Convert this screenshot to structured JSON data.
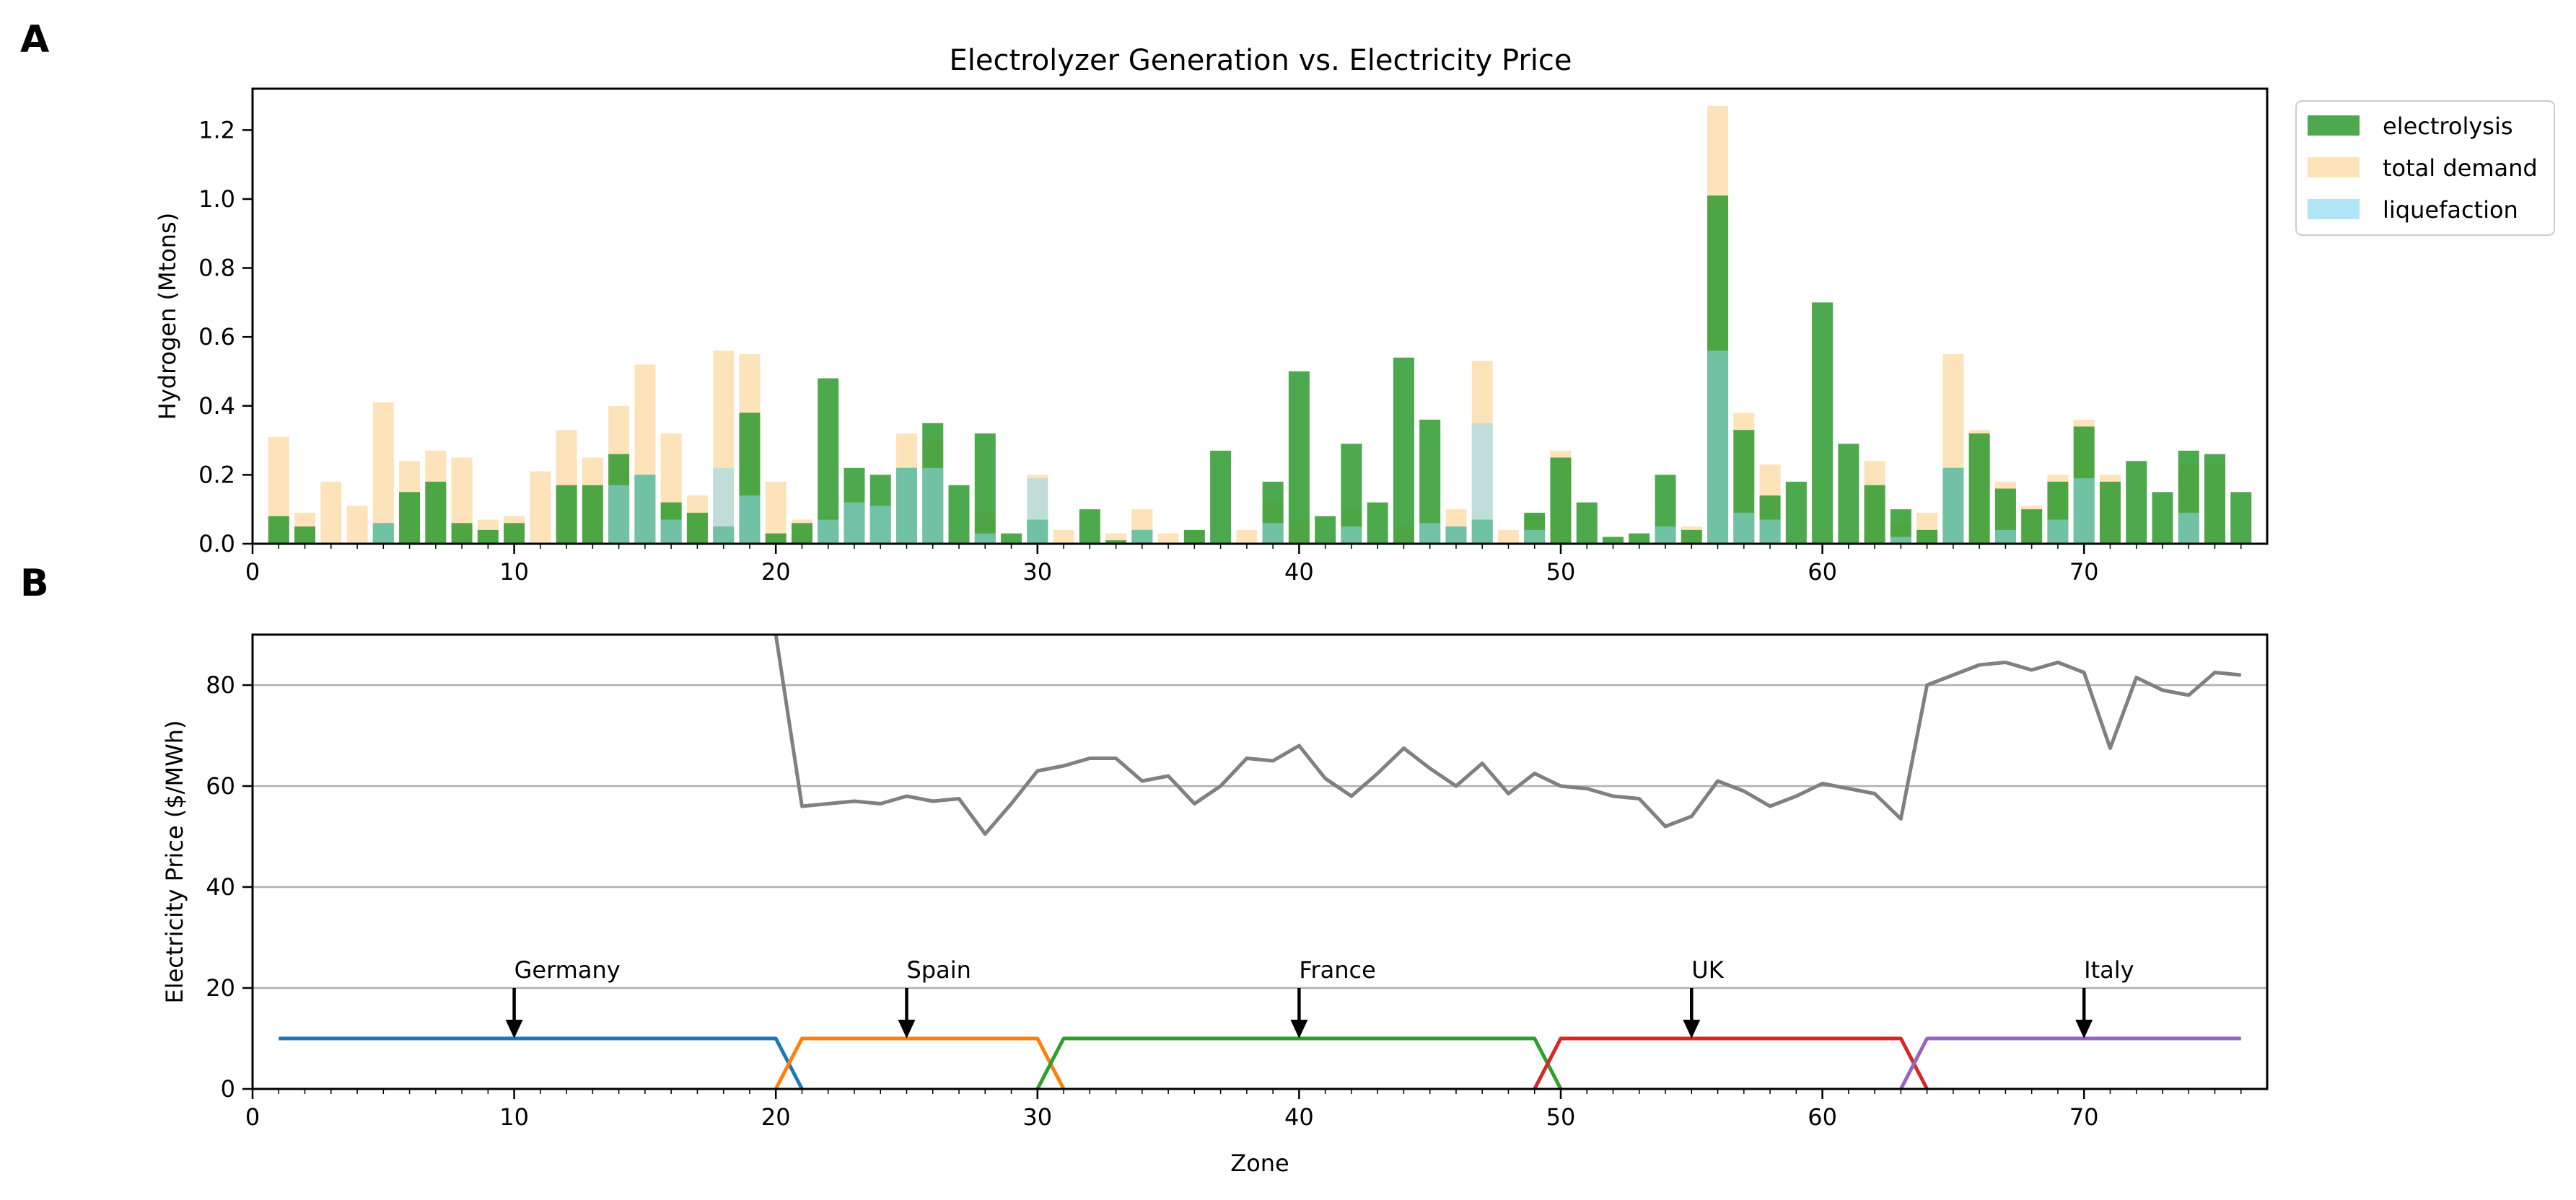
{
  "panels": {
    "a": "A",
    "b": "B"
  },
  "legend": {
    "entries": [
      "electrolysis",
      "total demand",
      "liquefaction"
    ]
  },
  "colors": {
    "electrolysis": "#2e9a2e",
    "total_demand": "#fbd18a",
    "liquefaction": "#8fd8f4",
    "price_line": "#808080",
    "region_lines": [
      "#1f77b4",
      "#ff7f0e",
      "#2ca02c",
      "#d62728",
      "#9467bd"
    ]
  },
  "chart_data": [
    {
      "type": "bar",
      "title": "Electrolyzer Generation vs. Electricity Price",
      "xlabel": "",
      "ylabel": "Hydrogen (Mtons)",
      "xlim": [
        0,
        77
      ],
      "ylim": [
        0,
        1.32
      ],
      "xticks": [
        0,
        10,
        20,
        30,
        40,
        50,
        60,
        70
      ],
      "yticks": [
        0.0,
        0.2,
        0.4,
        0.6,
        0.8,
        1.0,
        1.2
      ],
      "ytick_labels": [
        "0.0",
        "0.2",
        "0.4",
        "0.6",
        "0.8",
        "1.0",
        "1.2"
      ],
      "legend_position": "outside-top-right",
      "grid": false,
      "x": [
        1,
        2,
        3,
        4,
        5,
        6,
        7,
        8,
        9,
        10,
        11,
        12,
        13,
        14,
        15,
        16,
        17,
        18,
        19,
        20,
        21,
        22,
        23,
        24,
        25,
        26,
        27,
        28,
        29,
        30,
        31,
        32,
        33,
        34,
        35,
        36,
        37,
        38,
        39,
        40,
        41,
        42,
        43,
        44,
        45,
        46,
        47,
        48,
        49,
        50,
        51,
        52,
        53,
        54,
        55,
        56,
        57,
        58,
        59,
        60,
        61,
        62,
        63,
        64,
        65,
        66,
        67,
        68,
        69,
        70,
        71,
        72,
        73,
        74,
        75,
        76
      ],
      "series": [
        {
          "name": "electrolysis",
          "values": [
            0.08,
            0.05,
            0.0,
            0.0,
            0.06,
            0.15,
            0.18,
            0.06,
            0.04,
            0.06,
            0.0,
            0.17,
            0.17,
            0.26,
            0.2,
            0.12,
            0.09,
            0.05,
            0.38,
            0.03,
            0.06,
            0.48,
            0.22,
            0.2,
            0.22,
            0.35,
            0.17,
            0.32,
            0.03,
            0.07,
            0.0,
            0.1,
            0.01,
            0.04,
            0.0,
            0.04,
            0.27,
            0.0,
            0.18,
            0.5,
            0.08,
            0.29,
            0.12,
            0.54,
            0.36,
            0.05,
            0.07,
            0.0,
            0.09,
            0.25,
            0.12,
            0.02,
            0.03,
            0.2,
            0.04,
            1.01,
            0.33,
            0.14,
            0.18,
            0.7,
            0.29,
            0.17,
            0.1,
            0.04,
            0.22,
            0.32,
            0.16,
            0.1,
            0.18,
            0.34,
            0.18,
            0.24,
            0.15,
            0.27,
            0.26,
            0.15
          ]
        },
        {
          "name": "total demand",
          "values": [
            0.31,
            0.09,
            0.18,
            0.11,
            0.41,
            0.24,
            0.27,
            0.25,
            0.07,
            0.08,
            0.21,
            0.33,
            0.25,
            0.4,
            0.52,
            0.32,
            0.14,
            0.56,
            0.55,
            0.18,
            0.07,
            0.08,
            0.0,
            0.0,
            0.32,
            0.3,
            0.0,
            0.09,
            0.0,
            0.2,
            0.04,
            0.0,
            0.03,
            0.1,
            0.03,
            0.04,
            0.0,
            0.04,
            0.12,
            0.07,
            0.0,
            0.1,
            0.0,
            0.05,
            0.0,
            0.1,
            0.53,
            0.04,
            0.08,
            0.27,
            0.0,
            0.0,
            0.0,
            0.05,
            0.05,
            1.27,
            0.38,
            0.23,
            0.0,
            0.0,
            0.0,
            0.24,
            0.06,
            0.09,
            0.55,
            0.33,
            0.18,
            0.11,
            0.2,
            0.36,
            0.2,
            0.0,
            0.0,
            0.23,
            0.23,
            0.0
          ]
        },
        {
          "name": "liquefaction",
          "values": [
            0.0,
            0.0,
            0.0,
            0.0,
            0.06,
            0.0,
            0.0,
            0.0,
            0.0,
            0.0,
            0.0,
            0.0,
            0.0,
            0.17,
            0.2,
            0.07,
            0.0,
            0.22,
            0.14,
            0.0,
            0.0,
            0.07,
            0.12,
            0.11,
            0.22,
            0.22,
            0.0,
            0.03,
            0.0,
            0.19,
            0.0,
            0.0,
            0.0,
            0.04,
            0.0,
            0.0,
            0.0,
            0.0,
            0.06,
            0.0,
            0.0,
            0.05,
            0.0,
            0.0,
            0.06,
            0.05,
            0.35,
            0.0,
            0.04,
            0.0,
            0.0,
            0.0,
            0.0,
            0.05,
            0.0,
            0.56,
            0.09,
            0.07,
            0.0,
            0.0,
            0.0,
            0.0,
            0.02,
            0.0,
            0.22,
            0.0,
            0.04,
            0.0,
            0.07,
            0.19,
            0.0,
            0.0,
            0.0,
            0.09,
            0.0,
            0.0
          ]
        }
      ]
    },
    {
      "type": "line",
      "title": "",
      "xlabel": "Zone",
      "ylabel": "Electricity Price ($/MWh)",
      "xlim": [
        0,
        77
      ],
      "ylim": [
        0,
        90
      ],
      "xticks": [
        0,
        10,
        20,
        30,
        40,
        50,
        60,
        70
      ],
      "yticks": [
        0,
        20,
        40,
        60,
        80
      ],
      "grid": "y",
      "series": [
        {
          "name": "",
          "x": [
            20,
            21,
            22,
            23,
            24,
            25,
            26,
            27,
            28,
            29,
            30,
            31,
            32,
            33,
            34,
            35,
            36,
            37,
            38,
            39,
            40,
            41,
            42,
            43,
            44,
            45,
            46,
            47,
            48,
            49,
            50,
            51,
            52,
            53,
            54,
            55,
            56,
            57,
            58,
            59,
            60,
            61,
            62,
            63,
            64,
            65,
            66,
            67,
            68,
            69,
            70,
            71,
            72,
            73,
            74,
            75,
            76
          ],
          "values": [
            90,
            56,
            56.5,
            57,
            56.5,
            58,
            57,
            57.5,
            50.5,
            56.5,
            63,
            64,
            65.5,
            65.5,
            61,
            62,
            56.5,
            60,
            65.5,
            65,
            68,
            61.5,
            58,
            62.5,
            67.5,
            63.5,
            60,
            64.5,
            58.5,
            62.5,
            60,
            59.5,
            58,
            57.5,
            52,
            54,
            61,
            59,
            56,
            58,
            60.5,
            59.5,
            58.5,
            53.5,
            80,
            82,
            84,
            84.5,
            83,
            84.5,
            82.5,
            67.5,
            81.5,
            79,
            78,
            82.5,
            82
          ]
        }
      ],
      "regions": [
        {
          "name": "Germany",
          "arrow_x": 10,
          "x": [
            1,
            20,
            21
          ],
          "y": [
            10,
            10,
            0
          ]
        },
        {
          "name": "Spain",
          "arrow_x": 25,
          "x": [
            20,
            21,
            30,
            31
          ],
          "y": [
            0,
            10,
            10,
            0
          ]
        },
        {
          "name": "France",
          "arrow_x": 40,
          "x": [
            30,
            31,
            49,
            50
          ],
          "y": [
            0,
            10,
            10,
            0
          ]
        },
        {
          "name": "UK",
          "arrow_x": 55,
          "x": [
            49,
            50,
            63,
            64
          ],
          "y": [
            0,
            10,
            10,
            0
          ]
        },
        {
          "name": "Italy",
          "arrow_x": 70,
          "x": [
            63,
            64,
            76
          ],
          "y": [
            0,
            10,
            10
          ]
        }
      ],
      "arrow": {
        "from_y": 20,
        "to_y": 10
      }
    }
  ]
}
